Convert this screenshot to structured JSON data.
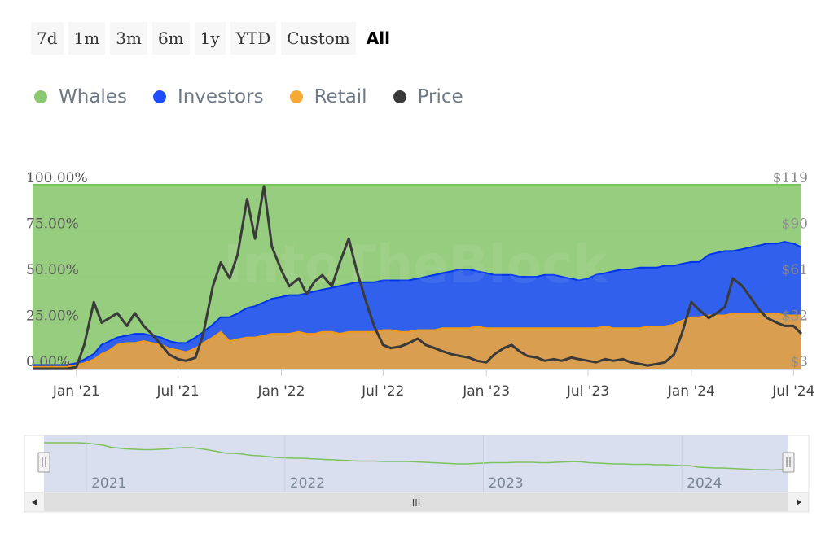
{
  "range_selector": {
    "buttons": [
      "7d",
      "1m",
      "3m",
      "6m",
      "1y",
      "YTD",
      "Custom",
      "All"
    ],
    "selected": "All"
  },
  "legend": [
    {
      "label": "Whales",
      "color": "#8cc870"
    },
    {
      "label": "Investors",
      "color": "#1e4dff"
    },
    {
      "label": "Retail",
      "color": "#f7a935"
    },
    {
      "label": "Price",
      "color": "#3a3a3a"
    }
  ],
  "watermark": "IntoTheBlock",
  "chart_data": {
    "type": "area",
    "stacked": true,
    "x": [
      "2020-10-15",
      "2020-11-15",
      "2020-12-15",
      "2021-01-01",
      "2021-01-15",
      "2021-02-01",
      "2021-02-15",
      "2021-03-01",
      "2021-03-15",
      "2021-04-01",
      "2021-04-15",
      "2021-05-01",
      "2021-05-15",
      "2021-06-01",
      "2021-06-15",
      "2021-07-01",
      "2021-07-15",
      "2021-08-01",
      "2021-08-15",
      "2021-09-01",
      "2021-09-15",
      "2021-10-01",
      "2021-10-15",
      "2021-11-01",
      "2021-11-15",
      "2021-12-01",
      "2021-12-15",
      "2022-01-01",
      "2022-01-15",
      "2022-02-01",
      "2022-02-15",
      "2022-03-01",
      "2022-03-15",
      "2022-04-01",
      "2022-04-15",
      "2022-05-01",
      "2022-05-15",
      "2022-06-01",
      "2022-06-15",
      "2022-07-01",
      "2022-07-15",
      "2022-08-01",
      "2022-08-15",
      "2022-09-01",
      "2022-09-15",
      "2022-10-01",
      "2022-10-15",
      "2022-11-01",
      "2022-11-15",
      "2022-12-01",
      "2022-12-15",
      "2023-01-01",
      "2023-01-15",
      "2023-02-01",
      "2023-02-15",
      "2023-03-01",
      "2023-03-15",
      "2023-04-01",
      "2023-04-15",
      "2023-05-01",
      "2023-05-15",
      "2023-06-01",
      "2023-06-15",
      "2023-07-01",
      "2023-07-15",
      "2023-08-01",
      "2023-08-15",
      "2023-09-01",
      "2023-09-15",
      "2023-10-01",
      "2023-10-15",
      "2023-11-01",
      "2023-11-15",
      "2023-12-01",
      "2023-12-15",
      "2024-01-01",
      "2024-01-15",
      "2024-02-01",
      "2024-02-15",
      "2024-03-01",
      "2024-03-15",
      "2024-04-01",
      "2024-04-15",
      "2024-05-01",
      "2024-05-15",
      "2024-06-01",
      "2024-06-15",
      "2024-07-01",
      "2024-07-15"
    ],
    "series": [
      {
        "name": "Retail",
        "axis": "left",
        "unit": "%",
        "values": [
          1,
          1,
          1,
          2,
          3,
          5,
          8,
          10,
          13,
          14,
          14,
          15,
          14,
          13,
          11,
          10,
          9,
          11,
          14,
          17,
          20,
          15,
          16,
          17,
          17,
          18,
          19,
          19,
          19,
          20,
          19,
          19,
          20,
          20,
          19,
          20,
          20,
          20,
          20,
          21,
          21,
          20,
          20,
          21,
          21,
          21,
          22,
          22,
          22,
          22,
          23,
          22,
          22,
          22,
          22,
          22,
          22,
          22,
          22,
          22,
          22,
          22,
          22,
          22,
          22,
          23,
          22,
          22,
          22,
          22,
          23,
          23,
          23,
          24,
          26,
          28,
          28,
          29,
          29,
          29,
          30,
          30,
          30,
          30,
          30,
          30,
          29,
          29,
          29
        ]
      },
      {
        "name": "Investors",
        "axis": "left",
        "unit": "%",
        "values": [
          2,
          2,
          2,
          3,
          5,
          8,
          13,
          15,
          17,
          18,
          19,
          19,
          18,
          17,
          15,
          14,
          14,
          17,
          20,
          24,
          28,
          28,
          30,
          33,
          34,
          36,
          38,
          39,
          40,
          40,
          41,
          42,
          43,
          44,
          45,
          46,
          47,
          47,
          47,
          48,
          48,
          48,
          48,
          49,
          50,
          51,
          52,
          53,
          54,
          54,
          53,
          52,
          51,
          51,
          51,
          50,
          50,
          50,
          51,
          51,
          50,
          49,
          48,
          49,
          51,
          52,
          53,
          54,
          54,
          55,
          55,
          55,
          56,
          56,
          57,
          58,
          58,
          62,
          63,
          64,
          64,
          65,
          66,
          67,
          68,
          68,
          69,
          68,
          66
        ]
      },
      {
        "name": "Whales",
        "axis": "left",
        "unit": "%",
        "values": [
          100,
          100,
          100,
          100,
          100,
          100,
          100,
          100,
          100,
          100,
          100,
          100,
          100,
          100,
          100,
          100,
          100,
          100,
          100,
          100,
          100,
          100,
          100,
          100,
          100,
          100,
          100,
          100,
          100,
          100,
          100,
          100,
          100,
          100,
          100,
          100,
          100,
          100,
          100,
          100,
          100,
          100,
          100,
          100,
          100,
          100,
          100,
          100,
          100,
          100,
          100,
          100,
          100,
          100,
          100,
          100,
          100,
          100,
          100,
          100,
          100,
          100,
          100,
          100,
          100,
          100,
          100,
          100,
          100,
          100,
          100,
          100,
          100,
          100,
          100,
          100,
          100,
          100,
          100,
          100,
          100,
          100,
          100,
          100,
          100,
          100,
          100,
          100,
          100
        ]
      },
      {
        "name": "Price",
        "axis": "right",
        "unit": "$",
        "values": [
          3,
          3,
          3,
          4,
          18,
          45,
          32,
          35,
          38,
          30,
          38,
          30,
          25,
          18,
          12,
          9,
          8,
          10,
          25,
          55,
          70,
          60,
          75,
          110,
          85,
          118,
          80,
          65,
          55,
          60,
          50,
          58,
          62,
          55,
          70,
          85,
          65,
          45,
          30,
          18,
          16,
          17,
          19,
          22,
          18,
          16,
          14,
          12,
          11,
          10,
          8,
          7,
          12,
          16,
          18,
          14,
          11,
          10,
          8,
          9,
          8,
          10,
          9,
          8,
          7,
          9,
          8,
          9,
          7,
          6,
          5,
          6,
          7,
          12,
          25,
          45,
          40,
          35,
          38,
          42,
          60,
          55,
          48,
          40,
          35,
          32,
          30,
          30,
          25
        ]
      }
    ],
    "y_left": {
      "ticks": [
        "0.00%",
        "25.00%",
        "50.00%",
        "75.00%",
        "100.00%"
      ],
      "range": [
        0,
        100
      ]
    },
    "y_right": {
      "ticks": [
        "$3",
        "$32",
        "$61",
        "$90",
        "$119"
      ],
      "range": [
        3,
        119
      ]
    },
    "x_ticks": [
      {
        "label": "Jan '21",
        "date": "2021-01-01"
      },
      {
        "label": "Jul '21",
        "date": "2021-07-01"
      },
      {
        "label": "Jan '22",
        "date": "2022-01-01"
      },
      {
        "label": "Jul '22",
        "date": "2022-07-01"
      },
      {
        "label": "Jan '23",
        "date": "2023-01-01"
      },
      {
        "label": "Jul '23",
        "date": "2023-07-01"
      },
      {
        "label": "Jan '24",
        "date": "2024-01-01"
      },
      {
        "label": "Jul '24",
        "date": "2024-07-01"
      }
    ],
    "navigator": {
      "year_labels": [
        "2021",
        "2022",
        "2023",
        "2024"
      ],
      "scrollbar_thumb_label": "III"
    }
  }
}
